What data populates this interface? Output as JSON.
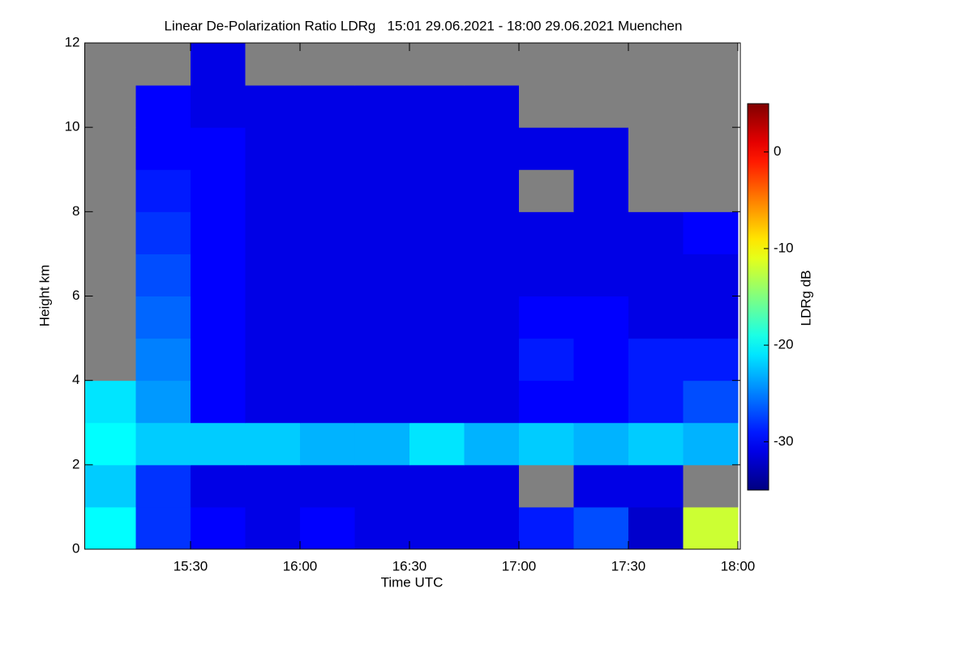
{
  "chart_data": {
    "type": "heatmap",
    "title": "Linear De-Polarization Ratio LDRg   15:01 29.06.2021 - 18:00 29.06.2021 Muenchen",
    "x_label": "Time UTC",
    "y_label": "Height km",
    "colorbar_label": "LDRg dB",
    "xbins": [
      15.0167,
      15.25,
      15.5,
      15.75,
      16.0,
      16.25,
      16.5,
      16.75,
      17.0,
      17.25,
      17.5,
      17.75,
      18.0
    ],
    "ybins": [
      0,
      1,
      2,
      3,
      4,
      5,
      6,
      7,
      8,
      9,
      10,
      11,
      12
    ],
    "values": [
      [
        -20,
        -28,
        -30,
        -31,
        -30,
        -31,
        -31,
        -31,
        -29,
        -27,
        -32,
        -12
      ],
      [
        -22,
        -28,
        -31,
        -31,
        -31,
        -31,
        -31,
        -31,
        null,
        -31,
        -31,
        null
      ],
      [
        -20,
        -22,
        -22,
        -22,
        -23,
        -23,
        -21,
        -23,
        -22,
        -23,
        -22,
        -23
      ],
      [
        -21,
        -24,
        -30,
        -31,
        -31,
        -31,
        -31,
        -31,
        -30,
        -30,
        -29,
        -27
      ],
      [
        null,
        -25,
        -30,
        -31,
        -31,
        -31,
        -31,
        -31,
        -29,
        -30,
        -29,
        -29
      ],
      [
        null,
        -26,
        -30,
        -31,
        -31,
        -31,
        -31,
        -31,
        -30,
        -30,
        -31,
        -31
      ],
      [
        null,
        -27,
        -30,
        -31,
        -31,
        -31,
        -31,
        -31,
        -31,
        -31,
        -31,
        -31
      ],
      [
        null,
        -28,
        -30,
        -31,
        -31,
        -31,
        -31,
        -31,
        -31,
        -31,
        -31,
        -30
      ],
      [
        null,
        -29,
        -30,
        -31,
        -31,
        -31,
        -31,
        -31,
        null,
        -31,
        null,
        null
      ],
      [
        null,
        -30,
        -30,
        -31,
        -31,
        -31,
        -31,
        -31,
        -31,
        -31,
        null,
        null
      ],
      [
        null,
        -30,
        -31,
        -31,
        -31,
        -31,
        -31,
        -31,
        null,
        null,
        null,
        null
      ],
      [
        null,
        null,
        -31,
        null,
        null,
        null,
        null,
        null,
        null,
        null,
        null,
        null
      ]
    ],
    "missing_color": "#808080",
    "xlim": [
      15.0167,
      18.0
    ],
    "xticks": [
      {
        "value": 15.5,
        "label": "15:30"
      },
      {
        "value": 16.0,
        "label": "16:00"
      },
      {
        "value": 16.5,
        "label": "16:30"
      },
      {
        "value": 17.0,
        "label": "17:00"
      },
      {
        "value": 17.5,
        "label": "17:30"
      },
      {
        "value": 18.0,
        "label": "18:00"
      }
    ],
    "ylim": [
      0,
      12
    ],
    "yticks": [
      0,
      2,
      4,
      6,
      8,
      10,
      12
    ],
    "zlim": [
      -35,
      5
    ],
    "zticks": [
      0,
      -10,
      -20,
      -30
    ],
    "colormap": "jet"
  }
}
